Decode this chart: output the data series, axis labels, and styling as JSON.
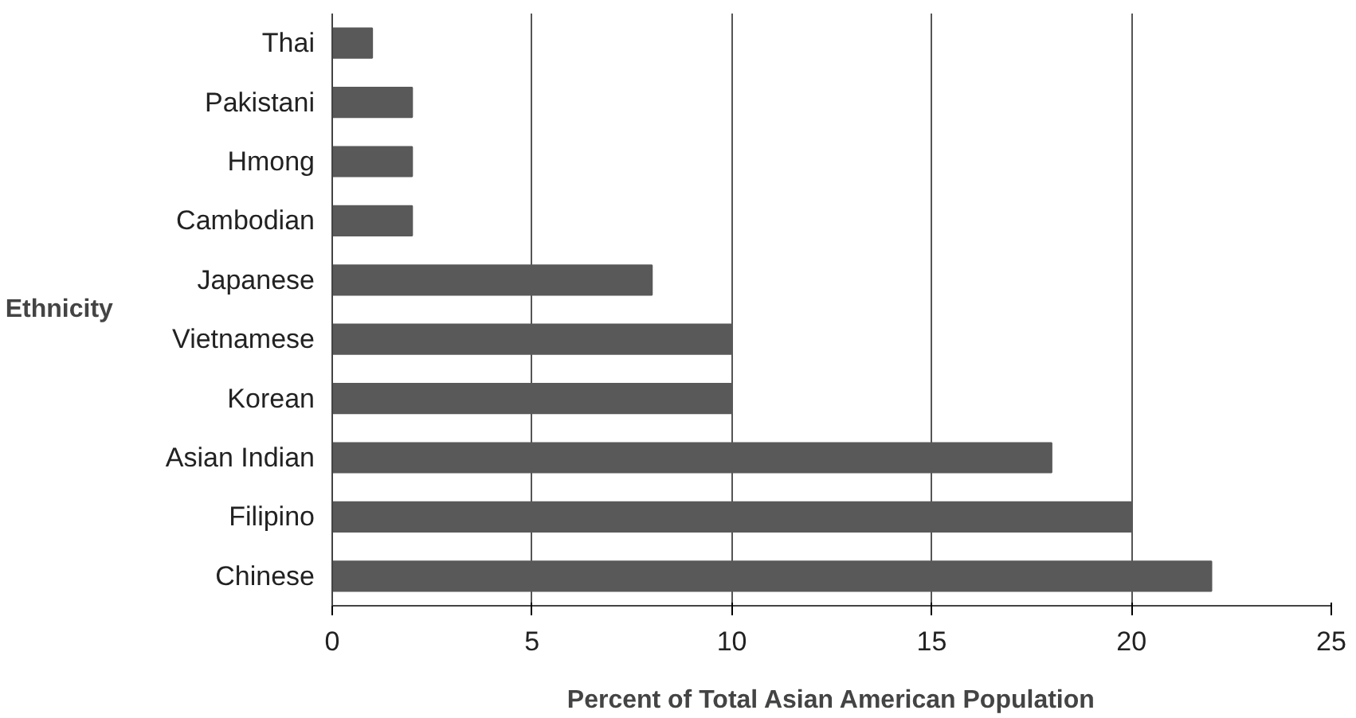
{
  "chart_data": {
    "type": "bar",
    "orientation": "horizontal",
    "categories": [
      "Thai",
      "Pakistani",
      "Hmong",
      "Cambodian",
      "Japanese",
      "Vietnamese",
      "Korean",
      "Asian Indian",
      "Filipino",
      "Chinese"
    ],
    "values": [
      1,
      2,
      2,
      2,
      8,
      10,
      10,
      18,
      20,
      22
    ],
    "color": "#595959",
    "xlabel": "Percent of Total Asian American Population",
    "ylabel": "Ethnicity",
    "xlim": [
      0,
      25
    ],
    "xticks": [
      0,
      5,
      10,
      15,
      20,
      25
    ],
    "grid": "x"
  }
}
